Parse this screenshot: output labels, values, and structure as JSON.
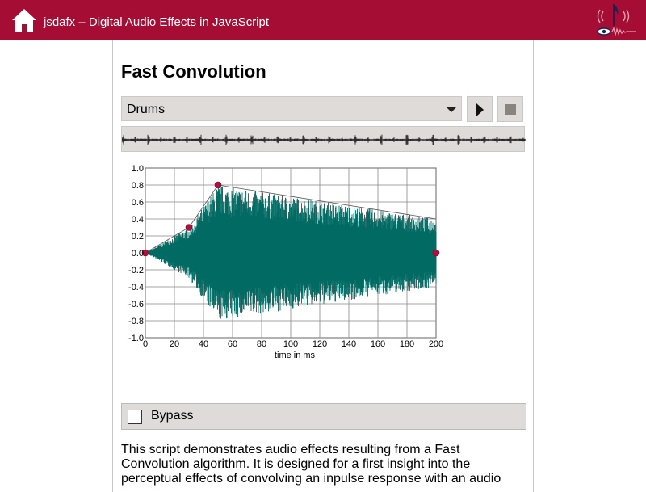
{
  "header": {
    "title": "jsdafx – Digital Audio Effects in JavaScript",
    "home_icon": "home-icon",
    "logo_icon": "music-note-eye-logo-icon",
    "background": "#a50d34"
  },
  "page": {
    "title": "Fast Convolution"
  },
  "controls": {
    "sound_select_value": "Drums",
    "play_icon": "play-icon",
    "stop_icon": "stop-icon"
  },
  "bypass": {
    "label": "Bypass",
    "checked": false
  },
  "description": "This script demonstrates audio effects resulting from a Fast Convolution algorithm. It is designed for a first insight into the perceptual effects of convolving an inpulse response with an audio",
  "colors": {
    "accent": "#a50d34",
    "waveform": "#006a63",
    "control_point": "#b0103e",
    "panel": "#dedbd9"
  },
  "chart_data": {
    "type": "line",
    "xlabel": "time in ms",
    "ylabel": "",
    "xlim": [
      0,
      200
    ],
    "ylim": [
      -1.0,
      1.0
    ],
    "x_ticks": [
      "0",
      "20",
      "40",
      "60",
      "80",
      "100",
      "120",
      "140",
      "160",
      "180",
      "200"
    ],
    "y_ticks": [
      "1.0",
      "0.8",
      "0.6",
      "0.4",
      "0.2",
      "0.0",
      "-0.2",
      "-0.4",
      "-0.6",
      "-0.8",
      "-1.0"
    ],
    "grid": true,
    "envelope_points": [
      {
        "x": 0,
        "y": 0.0
      },
      {
        "x": 30,
        "y": 0.3
      },
      {
        "x": 50,
        "y": 0.8
      },
      {
        "x": 200,
        "y": 0.0
      }
    ],
    "envelope_peak_line_end": {
      "x": 200,
      "y": 0.4
    }
  }
}
